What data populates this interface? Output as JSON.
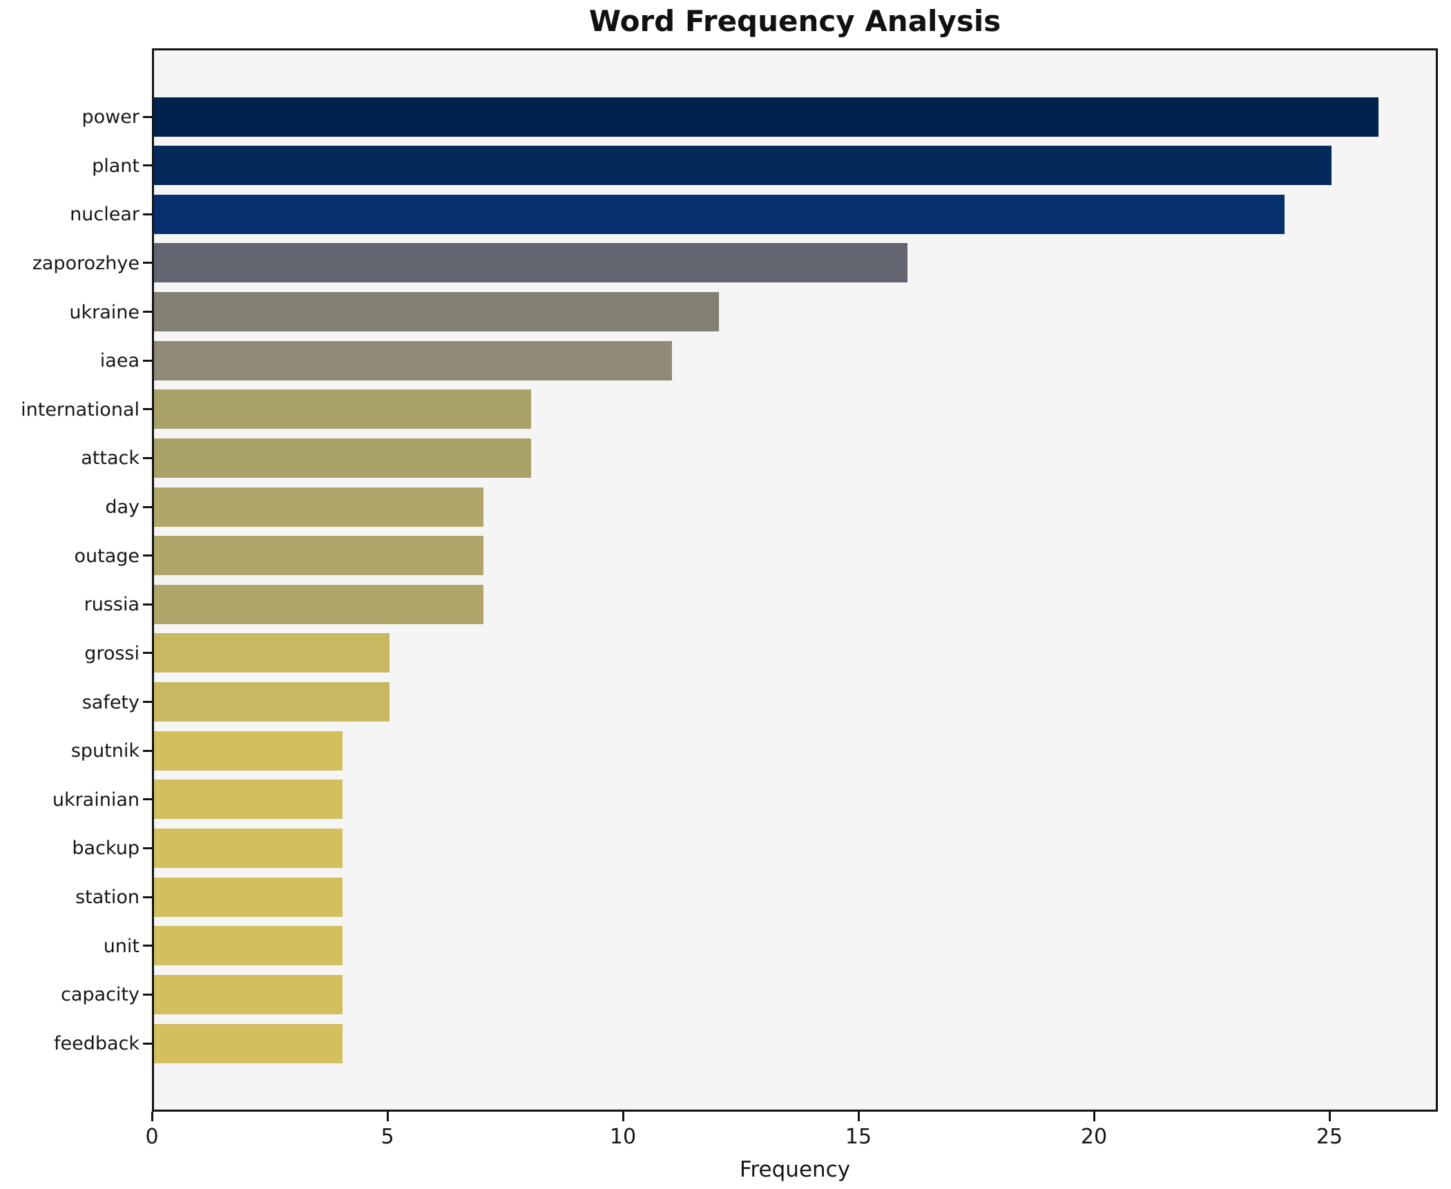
{
  "chart_data": {
    "type": "bar",
    "orientation": "horizontal",
    "title": "Word Frequency Analysis",
    "xlabel": "Frequency",
    "ylabel": "",
    "categories": [
      "power",
      "plant",
      "nuclear",
      "zaporozhye",
      "ukraine",
      "iaea",
      "international",
      "attack",
      "day",
      "outage",
      "russia",
      "grossi",
      "safety",
      "sputnik",
      "ukrainian",
      "backup",
      "station",
      "unit",
      "capacity",
      "feedback"
    ],
    "values": [
      26,
      25,
      24,
      16,
      12,
      11,
      8,
      8,
      7,
      7,
      7,
      5,
      5,
      4,
      4,
      4,
      4,
      4,
      4,
      4
    ],
    "bar_colors": [
      "#00234e",
      "#042a5c",
      "#07316e",
      "#626470",
      "#828072",
      "#8e8a76",
      "#a9a268",
      "#a9a268",
      "#b0a66a",
      "#b0a66a",
      "#b0a66a",
      "#c9b862",
      "#c9b862",
      "#d2c05f",
      "#d2c05f",
      "#d2c05f",
      "#d2c05f",
      "#d2c05f",
      "#d2c05f",
      "#d2c05f"
    ],
    "xticks": [
      0,
      5,
      10,
      15,
      20,
      25
    ],
    "xlim": [
      0,
      27.3
    ],
    "grid": false,
    "legend_position": "none",
    "plot_bg": "#f5f5f6",
    "figure_bg": "#ffffff",
    "bar_band_fraction": 0.8
  }
}
